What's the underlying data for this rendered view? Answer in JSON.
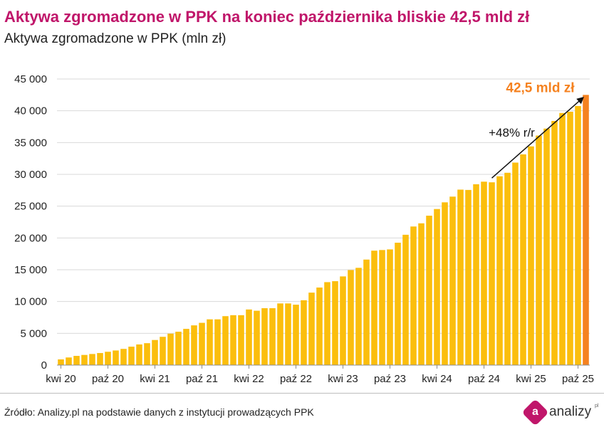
{
  "header": {
    "title": "Aktywa zgromadzone w PPK na koniec października bliskie 42,5 mld zł",
    "subtitle": "Aktywa zgromadzone w PPK (mln zł)"
  },
  "footer": {
    "source": "Źródło: Analizy.pl na podstawie danych z instytucji prowadzących PPK",
    "logo_letter": "a",
    "logo_text": "analizy",
    "logo_sup": "pl"
  },
  "colors": {
    "bar": "#fbbe0d",
    "bar_highlight": "#f58220",
    "highlight_label": "#f58220",
    "title": "#c0166a",
    "grid": "#d9d9d9"
  },
  "chart_data": {
    "type": "bar",
    "title": "Aktywa zgromadzone w PPK na koniec października bliskie 42,5 mld zł",
    "subtitle": "Aktywa zgromadzone w PPK (mln zł)",
    "xlabel": "",
    "ylabel": "",
    "ylim": [
      0,
      45000
    ],
    "y_ticks": [
      0,
      5000,
      10000,
      15000,
      20000,
      25000,
      30000,
      35000,
      40000,
      45000
    ],
    "y_tick_labels": [
      "0",
      "5 000",
      "10 000",
      "15 000",
      "20 000",
      "25 000",
      "30 000",
      "35 000",
      "40 000",
      "45 000"
    ],
    "grid": true,
    "legend": "none",
    "x_tick_labels": [
      {
        "index": 0,
        "label": "kwi 20"
      },
      {
        "index": 6,
        "label": "paź 20"
      },
      {
        "index": 12,
        "label": "kwi 21"
      },
      {
        "index": 18,
        "label": "paź 21"
      },
      {
        "index": 24,
        "label": "kwi 22"
      },
      {
        "index": 30,
        "label": "paź 22"
      },
      {
        "index": 36,
        "label": "kwi 23"
      },
      {
        "index": 42,
        "label": "paź 23"
      },
      {
        "index": 48,
        "label": "kwi 24"
      },
      {
        "index": 54,
        "label": "paź 24"
      },
      {
        "index": 60,
        "label": "kwi 25"
      },
      {
        "index": 66,
        "label": "paź 25"
      }
    ],
    "values": [
      900,
      1200,
      1450,
      1600,
      1750,
      1900,
      2100,
      2300,
      2550,
      2900,
      3250,
      3450,
      3950,
      4450,
      4950,
      5250,
      5700,
      6250,
      6650,
      7200,
      7200,
      7700,
      7850,
      7850,
      8750,
      8550,
      8950,
      8950,
      9700,
      9700,
      9500,
      10200,
      11400,
      12200,
      13050,
      13200,
      13950,
      14950,
      15300,
      16600,
      18000,
      18100,
      18200,
      19250,
      20500,
      21800,
      22300,
      23500,
      24550,
      25600,
      26500,
      27600,
      27550,
      28450,
      28850,
      28750,
      29700,
      30250,
      31850,
      33150,
      34400,
      36100,
      37200,
      38400,
      39650,
      39850,
      40750,
      42500
    ],
    "highlight_index": 67,
    "annotations": [
      {
        "text": "42,5 mld zł",
        "type": "highlight_label"
      },
      {
        "text": "+48% r/r",
        "type": "yoy_arrow",
        "from_index": 55,
        "to_index": 67
      }
    ]
  }
}
